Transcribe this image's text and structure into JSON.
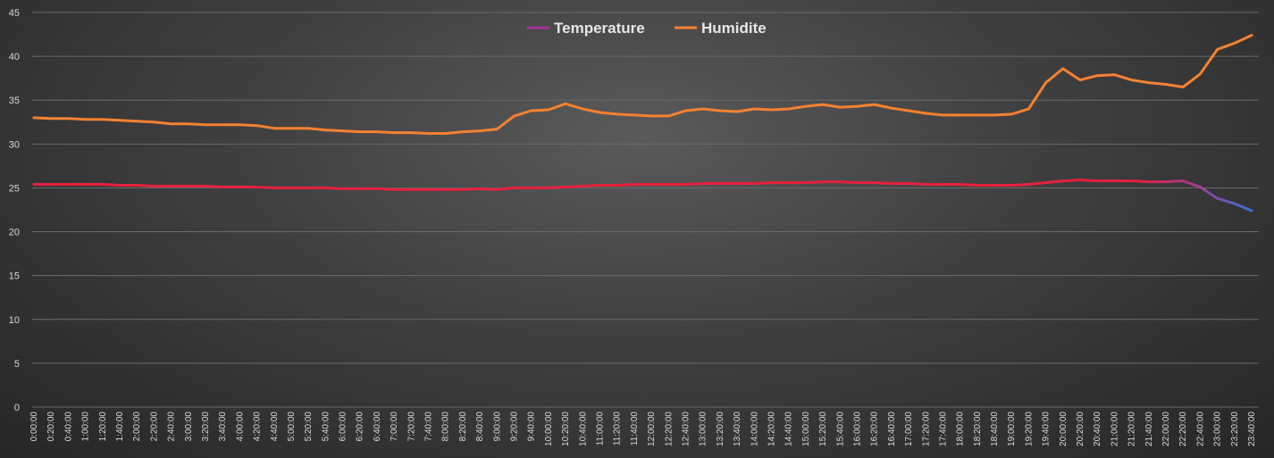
{
  "chart_data": {
    "type": "line",
    "ylim": [
      0,
      45
    ],
    "yticks": [
      0,
      5,
      10,
      15,
      20,
      25,
      30,
      35,
      40,
      45
    ],
    "grid": "horizontal",
    "legend_position": "top-center",
    "x_tick_labels": [
      "0:00:00",
      "0:20:00",
      "0:40:00",
      "1:00:00",
      "1:20:00",
      "1:40:00",
      "2:00:00",
      "2:20:00",
      "2:40:00",
      "3:00:00",
      "3:20:00",
      "3:40:00",
      "4:00:00",
      "4:20:00",
      "4:40:00",
      "5:00:00",
      "5:20:00",
      "5:40:00",
      "6:00:00",
      "6:20:00",
      "6:40:00",
      "7:00:00",
      "7:20:00",
      "7:40:00",
      "8:00:00",
      "8:20:00",
      "8:40:00",
      "9:00:00",
      "9:20:00",
      "9:40:00",
      "10:00:00",
      "10:20:00",
      "10:40:00",
      "11:00:00",
      "11:20:00",
      "11:40:00",
      "12:00:00",
      "12:20:00",
      "12:40:00",
      "13:00:00",
      "13:20:00",
      "13:40:00",
      "14:00:00",
      "14:20:00",
      "14:40:00",
      "15:00:00",
      "15:20:00",
      "15:40:00",
      "16:00:00",
      "16:20:00",
      "16:40:00",
      "17:00:00",
      "17:20:00",
      "17:40:00",
      "18:00:00",
      "18:20:00",
      "18:40:00",
      "19:00:00",
      "19:20:00",
      "19:40:00",
      "20:00:00",
      "20:20:00",
      "20:40:00",
      "21:00:00",
      "21:20:00",
      "21:40:00",
      "22:00:00",
      "22:20:00",
      "22:40:00",
      "23:00:00",
      "23:20:00",
      "23:40:00"
    ],
    "series": [
      {
        "name": "Temperature",
        "color_start": "#e8203c",
        "color_end": "#3a6fd8",
        "values": [
          25.4,
          25.4,
          25.4,
          25.4,
          25.4,
          25.3,
          25.3,
          25.2,
          25.2,
          25.2,
          25.2,
          25.1,
          25.1,
          25.1,
          25.0,
          25.0,
          25.0,
          25.0,
          24.9,
          24.9,
          24.9,
          24.8,
          24.8,
          24.8,
          24.8,
          24.8,
          24.9,
          24.8,
          25.0,
          25.0,
          25.0,
          25.1,
          25.2,
          25.3,
          25.3,
          25.4,
          25.4,
          25.4,
          25.4,
          25.5,
          25.5,
          25.5,
          25.5,
          25.6,
          25.6,
          25.6,
          25.7,
          25.7,
          25.6,
          25.6,
          25.5,
          25.5,
          25.4,
          25.4,
          25.4,
          25.3,
          25.3,
          25.3,
          25.4,
          25.6,
          25.8,
          25.9,
          25.8,
          25.8,
          25.8,
          25.7,
          25.7,
          25.8,
          25.1,
          23.8,
          23.2,
          22.4
        ]
      },
      {
        "name": "Humidite",
        "color": "#f4822f",
        "values": [
          33.0,
          32.9,
          32.9,
          32.8,
          32.8,
          32.7,
          32.6,
          32.5,
          32.3,
          32.3,
          32.2,
          32.2,
          32.2,
          32.1,
          31.8,
          31.8,
          31.8,
          31.6,
          31.5,
          31.4,
          31.4,
          31.3,
          31.3,
          31.2,
          31.2,
          31.4,
          31.5,
          31.7,
          33.2,
          33.8,
          33.9,
          34.6,
          34.0,
          33.6,
          33.4,
          33.3,
          33.2,
          33.2,
          33.8,
          34.0,
          33.8,
          33.7,
          34.0,
          33.9,
          34.0,
          34.3,
          34.5,
          34.2,
          34.3,
          34.5,
          34.1,
          33.8,
          33.5,
          33.3,
          33.3,
          33.3,
          33.3,
          33.4,
          34.0,
          37.0,
          38.6,
          37.3,
          37.8,
          37.9,
          37.3,
          37.0,
          36.8,
          36.5,
          38.0,
          40.8,
          41.5,
          42.4
        ]
      }
    ]
  }
}
